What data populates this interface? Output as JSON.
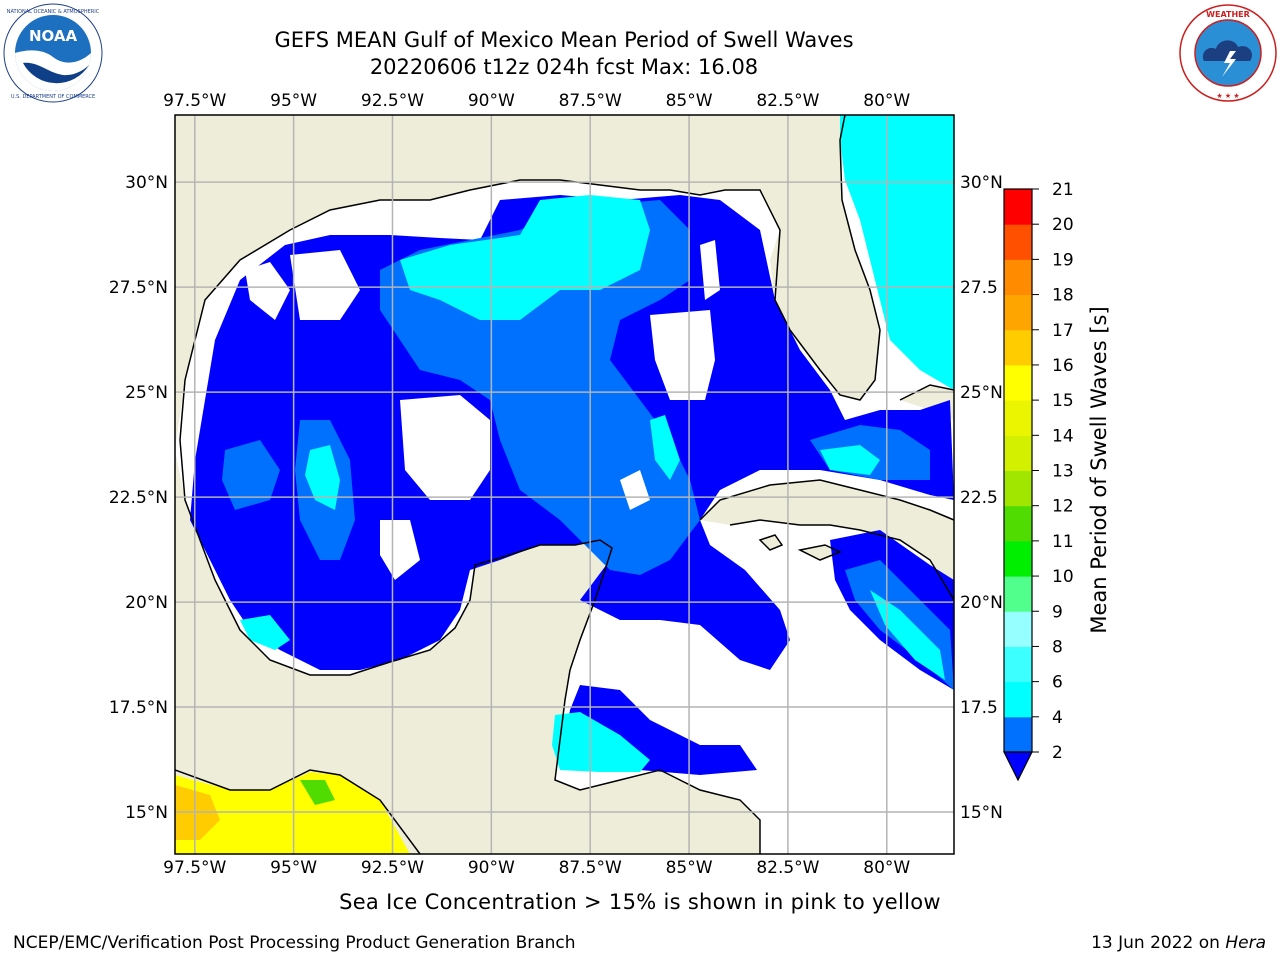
{
  "title": {
    "line1": "GEFS MEAN Gulf of Mexico Mean Period of Swell Waves",
    "line2": "20220606 t12z 024h fcst   Max: 16.08"
  },
  "logos": {
    "left": "noaa-logo",
    "left_text": "NOAA",
    "left_ring_text": "NATIONAL OCEANIC AND ATMOSPHERIC ADMINISTRATION · U.S. DEPARTMENT OF COMMERCE",
    "right": "nws-logo",
    "right_ring_text": "NATIONAL WEATHER SERVICE"
  },
  "map": {
    "lon_labels": [
      "97.5°W",
      "95°W",
      "92.5°W",
      "90°W",
      "87.5°W",
      "85°W",
      "82.5°W",
      "80°W"
    ],
    "lon_values": [
      -97.5,
      -95,
      -92.5,
      -90,
      -87.5,
      -85,
      -82.5,
      -80
    ],
    "lat_labels_left": [
      "30°N",
      "27.5°N",
      "25°N",
      "22.5°N",
      "20°N",
      "17.5°N",
      "15°N"
    ],
    "lat_labels_right": [
      "30°N",
      "27.5",
      "25°N",
      "22.5",
      "20°N",
      "17.5",
      "15°N"
    ],
    "lat_values": [
      30,
      27.5,
      25,
      22.5,
      20,
      17.5,
      15
    ],
    "extent": {
      "lon_min": -98,
      "lon_max": -78.3,
      "lat_min": 14,
      "lat_max": 31.6
    },
    "colors": {
      "land": "#eeedda",
      "ocean_nodata": "#ffffff",
      "grid": "#b4b4b4",
      "coast": "#000000"
    }
  },
  "colorbar": {
    "label": "Mean Period of Swell Waves [s]",
    "ticks": [
      "2",
      "4",
      "6",
      "8",
      "9",
      "10",
      "11",
      "12",
      "13",
      "14",
      "15",
      "16",
      "17",
      "18",
      "19",
      "20",
      "21"
    ],
    "tick_values": [
      2,
      4,
      6,
      8,
      9,
      10,
      11,
      12,
      13,
      14,
      15,
      16,
      17,
      18,
      19,
      20,
      21
    ],
    "colors": [
      "#0000ff",
      "#0070ff",
      "#00ffff",
      "#3cffff",
      "#96ffff",
      "#50ff8c",
      "#00ee00",
      "#50dc00",
      "#a0e600",
      "#d2f000",
      "#ebf500",
      "#ffff00",
      "#ffcc00",
      "#ffa500",
      "#ff8c00",
      "#ff5000",
      "#ff0000"
    ],
    "under_color": "#0000ff",
    "extend": "min"
  },
  "captions": {
    "ice_note": "Sea Ice Concentration > 15% is shown in pink to yellow",
    "left_credit": "NCEP/EMC/Verification Post Processing Product Generation Branch",
    "right_credit_date": "13 Jun 2022 on ",
    "right_credit_host": "Hera"
  }
}
